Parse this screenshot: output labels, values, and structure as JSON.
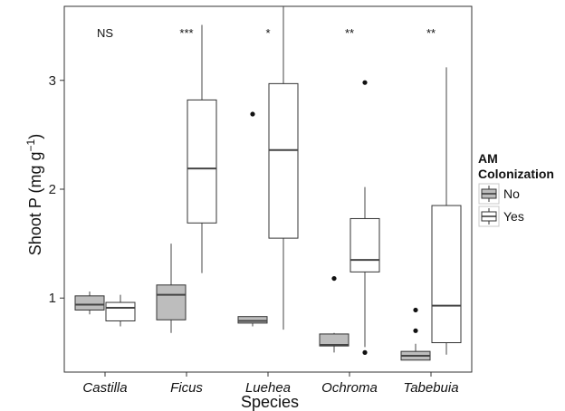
{
  "chart_data": {
    "type": "boxplot",
    "xlabel": "Species",
    "ylabel": "Shoot P (mg g⁻¹)",
    "ylim": [
      0.32,
      3.68
    ],
    "yticks": [
      1,
      2,
      3
    ],
    "categories": [
      "Castilla",
      "Ficus",
      "Luehea",
      "Ochroma",
      "Tabebuia"
    ],
    "significance": [
      "NS",
      "***",
      "*",
      "**",
      "**"
    ],
    "legend": {
      "title": "AM\nColonization",
      "title_lines": [
        "AM",
        "Colonization"
      ],
      "position": "right",
      "entries": [
        "No",
        "Yes"
      ]
    },
    "series": [
      {
        "name": "No",
        "color": "#bdbdbd",
        "boxes": [
          {
            "category": "Castilla",
            "min": 0.85,
            "q1": 0.89,
            "median": 0.94,
            "q3": 1.02,
            "max": 1.06,
            "outliers": []
          },
          {
            "category": "Ficus",
            "min": 0.68,
            "q1": 0.8,
            "median": 1.03,
            "q3": 1.12,
            "max": 1.5,
            "outliers": []
          },
          {
            "category": "Luehea",
            "min": 0.74,
            "q1": 0.77,
            "median": 0.79,
            "q3": 0.83,
            "max": 0.83,
            "outliers": [
              2.69
            ]
          },
          {
            "category": "Ochroma",
            "min": 0.5,
            "q1": 0.56,
            "median": 0.57,
            "q3": 0.67,
            "max": 0.68,
            "outliers": [
              1.18
            ]
          },
          {
            "category": "Tabebuia",
            "min": 0.43,
            "q1": 0.43,
            "median": 0.47,
            "q3": 0.51,
            "max": 0.58,
            "outliers": [
              0.7,
              0.89
            ]
          }
        ]
      },
      {
        "name": "Yes",
        "color": "#ffffff",
        "boxes": [
          {
            "category": "Castilla",
            "min": 0.74,
            "q1": 0.79,
            "median": 0.91,
            "q3": 0.96,
            "max": 1.03,
            "outliers": []
          },
          {
            "category": "Ficus",
            "min": 1.23,
            "q1": 1.69,
            "median": 2.19,
            "q3": 2.82,
            "max": 3.51,
            "outliers": []
          },
          {
            "category": "Luehea",
            "min": 0.71,
            "q1": 1.55,
            "median": 2.36,
            "q3": 2.97,
            "max": 3.68,
            "outliers": []
          },
          {
            "category": "Ochroma",
            "min": 0.55,
            "q1": 1.24,
            "median": 1.35,
            "q3": 1.73,
            "max": 2.02,
            "outliers": [
              0.5,
              2.98
            ]
          },
          {
            "category": "Tabebuia",
            "min": 0.48,
            "q1": 0.59,
            "median": 0.93,
            "q3": 1.85,
            "max": 3.12,
            "outliers": []
          }
        ]
      }
    ]
  }
}
